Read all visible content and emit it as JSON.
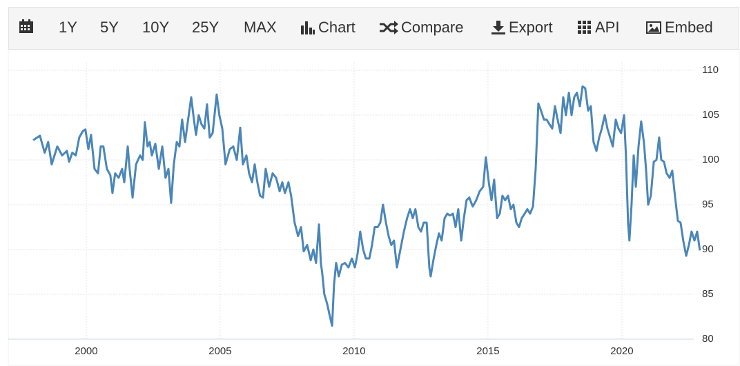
{
  "toolbar": {
    "items": [
      "1Y",
      "5Y",
      "10Y",
      "25Y",
      "MAX",
      "Chart",
      "Compare",
      "Export",
      "API",
      "Embed"
    ]
  },
  "chart_data": {
    "type": "line",
    "color": "#4a86b9",
    "grid": true,
    "xlim": [
      1997.09,
      2022.94
    ],
    "ylim": [
      80,
      110
    ],
    "xticks": [
      2000,
      2005,
      2010,
      2015,
      2020
    ],
    "yticks": [
      80,
      85,
      90,
      95,
      100,
      105,
      110
    ],
    "x": [
      1998.02,
      1998.27,
      1998.45,
      1998.58,
      1998.71,
      1998.92,
      1999.1,
      1999.28,
      1999.36,
      1999.48,
      1999.61,
      1999.74,
      1999.87,
      1999.97,
      2000.08,
      2000.18,
      2000.31,
      2000.44,
      2000.54,
      2000.64,
      2000.77,
      2000.9,
      2000.98,
      2001.08,
      2001.21,
      2001.34,
      2001.42,
      2001.55,
      2001.62,
      2001.73,
      2001.86,
      2002.01,
      2002.11,
      2002.19,
      2002.29,
      2002.37,
      2002.45,
      2002.58,
      2002.71,
      2002.84,
      2002.96,
      2003.07,
      2003.17,
      2003.27,
      2003.38,
      2003.48,
      2003.58,
      2003.69,
      2003.79,
      2003.92,
      2004.02,
      2004.1,
      2004.2,
      2004.3,
      2004.41,
      2004.51,
      2004.61,
      2004.72,
      2004.87,
      2004.97,
      2005.08,
      2005.2,
      2005.36,
      2005.49,
      2005.62,
      2005.75,
      2005.85,
      2005.98,
      2006.08,
      2006.19,
      2006.29,
      2006.39,
      2006.49,
      2006.6,
      2006.7,
      2006.83,
      2006.96,
      2007.09,
      2007.22,
      2007.32,
      2007.42,
      2007.55,
      2007.65,
      2007.78,
      2007.91,
      2008.02,
      2008.12,
      2008.25,
      2008.38,
      2008.48,
      2008.58,
      2008.69,
      2008.76,
      2008.81,
      2008.89,
      2008.99,
      2009.1,
      2009.18,
      2009.25,
      2009.33,
      2009.43,
      2009.54,
      2009.66,
      2009.79,
      2009.92,
      2010.03,
      2010.13,
      2010.23,
      2010.34,
      2010.44,
      2010.57,
      2010.67,
      2010.77,
      2010.88,
      2010.98,
      2011.08,
      2011.19,
      2011.29,
      2011.39,
      2011.49,
      2011.6,
      2011.73,
      2011.86,
      2011.98,
      2012.09,
      2012.19,
      2012.29,
      2012.4,
      2012.5,
      2012.6,
      2012.71,
      2012.81,
      2012.86,
      2012.96,
      2013.07,
      2013.17,
      2013.27,
      2013.38,
      2013.48,
      2013.58,
      2013.69,
      2013.79,
      2013.89,
      2014.0,
      2014.1,
      2014.2,
      2014.3,
      2014.43,
      2014.56,
      2014.69,
      2014.82,
      2014.92,
      2015.03,
      2015.13,
      2015.23,
      2015.34,
      2015.44,
      2015.54,
      2015.64,
      2015.75,
      2015.85,
      2015.95,
      2016.06,
      2016.16,
      2016.26,
      2016.37,
      2016.47,
      2016.57,
      2016.68,
      2016.78,
      2016.88,
      2016.98,
      2017.09,
      2017.19,
      2017.29,
      2017.4,
      2017.5,
      2017.6,
      2017.71,
      2017.81,
      2017.91,
      2018.02,
      2018.12,
      2018.22,
      2018.32,
      2018.43,
      2018.53,
      2018.63,
      2018.74,
      2018.84,
      2018.94,
      2019.05,
      2019.15,
      2019.25,
      2019.36,
      2019.46,
      2019.56,
      2019.66,
      2019.77,
      2019.87,
      2019.97,
      2020.08,
      2020.15,
      2020.23,
      2020.28,
      2020.36,
      2020.44,
      2020.52,
      2020.62,
      2020.72,
      2020.82,
      2020.9,
      2020.98,
      2021.08,
      2021.19,
      2021.29,
      2021.39,
      2021.47,
      2021.57,
      2021.67,
      2021.78,
      2021.88,
      2021.98,
      2022.09,
      2022.19,
      2022.29,
      2022.4,
      2022.5,
      2022.6,
      2022.71,
      2022.81,
      2022.91
    ],
    "values": [
      102.2,
      102.7,
      100.8,
      102.0,
      99.5,
      101.5,
      100.5,
      101.0,
      99.8,
      100.8,
      100.5,
      102.5,
      103.2,
      103.4,
      101.2,
      102.8,
      99.0,
      98.5,
      101.5,
      101.5,
      99.0,
      98.3,
      96.3,
      98.5,
      98.0,
      99.0,
      97.5,
      101.5,
      99.0,
      95.8,
      99.5,
      100.5,
      100.0,
      104.2,
      101.5,
      102.0,
      100.5,
      101.8,
      99.0,
      101.5,
      98.0,
      99.0,
      95.2,
      99.5,
      102.0,
      101.5,
      104.5,
      102.0,
      104.2,
      107.0,
      104.5,
      102.8,
      105.0,
      104.0,
      103.5,
      106.2,
      102.5,
      103.0,
      107.3,
      105.0,
      103.5,
      99.5,
      101.2,
      101.5,
      100.0,
      103.6,
      99.5,
      100.5,
      98.5,
      97.5,
      99.5,
      97.5,
      96.0,
      95.8,
      99.0,
      97.0,
      98.5,
      98.0,
      96.5,
      97.5,
      96.3,
      97.5,
      96.0,
      93.0,
      91.5,
      92.5,
      89.8,
      90.5,
      88.8,
      90.0,
      88.5,
      92.8,
      88.5,
      87.4,
      85.0,
      84.0,
      82.5,
      81.5,
      86.0,
      88.5,
      87.0,
      88.3,
      88.5,
      88.0,
      89.0,
      88.0,
      89.5,
      92.0,
      90.0,
      89.0,
      89.0,
      90.5,
      92.5,
      92.5,
      93.0,
      95.0,
      93.0,
      91.5,
      90.5,
      91.0,
      88.0,
      90.0,
      92.0,
      93.5,
      94.5,
      93.5,
      94.5,
      92.5,
      92.0,
      93.0,
      93.0,
      88.0,
      87.0,
      88.8,
      90.5,
      91.8,
      91.0,
      93.5,
      94.0,
      93.8,
      94.0,
      92.5,
      94.5,
      91.0,
      93.5,
      95.5,
      95.8,
      94.8,
      95.5,
      96.5,
      97.0,
      100.3,
      97.5,
      95.5,
      97.8,
      93.5,
      94.0,
      96.0,
      95.5,
      96.0,
      94.5,
      95.0,
      93.0,
      92.5,
      93.5,
      94.0,
      94.5,
      94.0,
      94.8,
      99.0,
      106.3,
      105.5,
      104.5,
      104.5,
      104.0,
      103.5,
      106.0,
      104.5,
      103.0,
      107.0,
      105.0,
      107.5,
      105.0,
      107.0,
      107.5,
      106.0,
      108.2,
      108.0,
      105.5,
      106.0,
      102.0,
      101.0,
      102.5,
      103.5,
      105.0,
      103.5,
      102.5,
      101.5,
      104.5,
      103.5,
      103.0,
      105.0,
      100.5,
      93.0,
      91.0,
      95.0,
      100.5,
      97.0,
      101.5,
      104.3,
      102.0,
      99.0,
      95.0,
      96.0,
      99.8,
      100.0,
      102.5,
      100.0,
      99.8,
      98.5,
      98.0,
      98.8,
      96.0,
      93.2,
      93.0,
      91.0,
      89.3,
      90.5,
      92.0,
      91.0,
      92.0,
      89.9
    ]
  }
}
